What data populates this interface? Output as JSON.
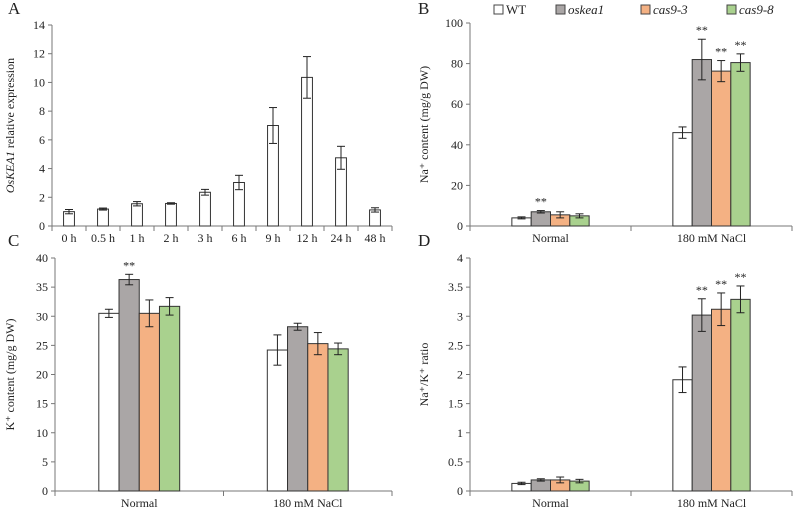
{
  "legend": {
    "entries": [
      "WT",
      "oskea1",
      "cas9-3",
      "cas9-8"
    ],
    "italic": [
      false,
      true,
      true,
      true
    ],
    "colors": [
      "#ffffff",
      "#aaa6a6",
      "#f4b183",
      "#a9d18e"
    ]
  },
  "chart_data": [
    {
      "panel": "A",
      "type": "bar",
      "title": "",
      "ylabel_italic": "OsKEA1",
      "ylabel": " relative expression",
      "xlabel": "",
      "ylim": [
        0,
        14
      ],
      "yticks": [
        0,
        2,
        4,
        6,
        8,
        10,
        12,
        14
      ],
      "categories": [
        "0 h",
        "0.5 h",
        "1 h",
        "2 h",
        "3 h",
        "6 h",
        "9 h",
        "12 h",
        "24 h",
        "48 h"
      ],
      "series": [
        {
          "name": "expression",
          "values": [
            1.0,
            1.18,
            1.55,
            1.57,
            2.35,
            3.03,
            7.0,
            10.35,
            4.75,
            1.12
          ],
          "errors": [
            0.15,
            0.07,
            0.15,
            0.05,
            0.2,
            0.5,
            1.25,
            1.45,
            0.8,
            0.15
          ]
        }
      ],
      "annotations": []
    },
    {
      "panel": "B",
      "type": "bar",
      "ylabel": "Na⁺ content (mg/g DW)",
      "ylim": [
        0,
        100
      ],
      "yticks": [
        0,
        20,
        40,
        60,
        80,
        100
      ],
      "categories": [
        "Normal",
        "180 mM NaCl"
      ],
      "series": [
        {
          "name": "WT",
          "values": [
            4.0,
            46.0
          ],
          "errors": [
            0.5,
            2.8
          ]
        },
        {
          "name": "oskea1",
          "values": [
            7.0,
            82.0
          ],
          "errors": [
            0.6,
            10.0
          ]
        },
        {
          "name": "cas9-3",
          "values": [
            5.5,
            76.3
          ],
          "errors": [
            1.5,
            5.2
          ]
        },
        {
          "name": "cas9-8",
          "values": [
            5.0,
            80.5
          ],
          "errors": [
            1.0,
            4.3
          ]
        }
      ],
      "annotations": [
        {
          "category": 0,
          "series": 1,
          "text": "**"
        },
        {
          "category": 1,
          "series": 1,
          "text": "**"
        },
        {
          "category": 1,
          "series": 2,
          "text": "**"
        },
        {
          "category": 1,
          "series": 3,
          "text": "**"
        }
      ]
    },
    {
      "panel": "C",
      "type": "bar",
      "ylabel": "K⁺ content (mg/g DW)",
      "ylim": [
        0,
        40
      ],
      "yticks": [
        0,
        5,
        10,
        15,
        20,
        25,
        30,
        35,
        40
      ],
      "categories": [
        "Normal",
        "180 mM NaCl"
      ],
      "series": [
        {
          "name": "WT",
          "values": [
            30.5,
            24.2
          ],
          "errors": [
            0.7,
            2.6
          ]
        },
        {
          "name": "oskea1",
          "values": [
            36.3,
            28.2
          ],
          "errors": [
            0.9,
            0.6
          ]
        },
        {
          "name": "cas9-3",
          "values": [
            30.5,
            25.3
          ],
          "errors": [
            2.3,
            1.9
          ]
        },
        {
          "name": "cas9-8",
          "values": [
            31.7,
            24.4
          ],
          "errors": [
            1.5,
            1.0
          ]
        }
      ],
      "annotations": [
        {
          "category": 0,
          "series": 1,
          "text": "**"
        }
      ]
    },
    {
      "panel": "D",
      "type": "bar",
      "ylabel": "Na⁺/K⁺ ratio",
      "ylim": [
        0,
        4
      ],
      "yticks": [
        0,
        0.5,
        1,
        1.5,
        2,
        2.5,
        3,
        3.5,
        4
      ],
      "categories": [
        "Normal",
        "180 mM NaCl"
      ],
      "series": [
        {
          "name": "WT",
          "values": [
            0.13,
            1.91
          ],
          "errors": [
            0.02,
            0.22
          ]
        },
        {
          "name": "oskea1",
          "values": [
            0.19,
            3.02
          ],
          "errors": [
            0.02,
            0.28
          ]
        },
        {
          "name": "cas9-3",
          "values": [
            0.19,
            3.12
          ],
          "errors": [
            0.05,
            0.28
          ]
        },
        {
          "name": "cas9-8",
          "values": [
            0.17,
            3.29
          ],
          "errors": [
            0.03,
            0.23
          ]
        }
      ],
      "annotations": [
        {
          "category": 1,
          "series": 1,
          "text": "**"
        },
        {
          "category": 1,
          "series": 2,
          "text": "**"
        },
        {
          "category": 1,
          "series": 3,
          "text": "**"
        }
      ]
    }
  ]
}
